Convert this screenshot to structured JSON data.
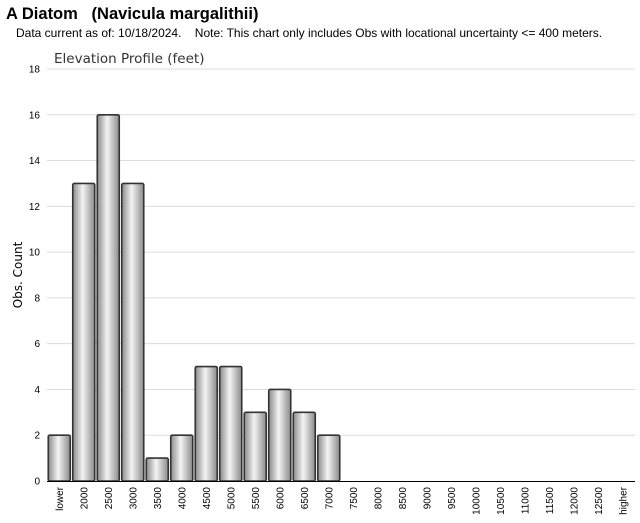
{
  "page": {
    "title": "A Diatom   (Navicula margalithii)",
    "note": "Data current as of: 10/18/2024.    Note: This chart only includes Obs with locational uncertainty <= 400 meters."
  },
  "chart_data": {
    "type": "bar",
    "title": "Elevation Profile (feet)",
    "xlabel": "",
    "ylabel": "Obs. Count",
    "ylim": [
      0,
      18
    ],
    "yticks": [
      0,
      2,
      4,
      6,
      8,
      10,
      12,
      14,
      16,
      18
    ],
    "grid": true,
    "legend": "none",
    "categories": [
      "lower",
      "2000",
      "2500",
      "3000",
      "3500",
      "4000",
      "4500",
      "5000",
      "5500",
      "6000",
      "6500",
      "7000",
      "7500",
      "8000",
      "8500",
      "9000",
      "9500",
      "10000",
      "10500",
      "11000",
      "11500",
      "12000",
      "12500",
      "higher"
    ],
    "values": [
      2,
      13,
      16,
      13,
      1,
      2,
      5,
      5,
      3,
      4,
      3,
      2,
      0,
      0,
      0,
      0,
      0,
      0,
      0,
      0,
      0,
      0,
      0,
      0
    ],
    "colors": {
      "bar_edge": "#333333",
      "bar_light": "#f4f4f4",
      "bar_dark": "#8a8a8a",
      "grid": "#dcdcdc",
      "axis": "#000000"
    }
  }
}
